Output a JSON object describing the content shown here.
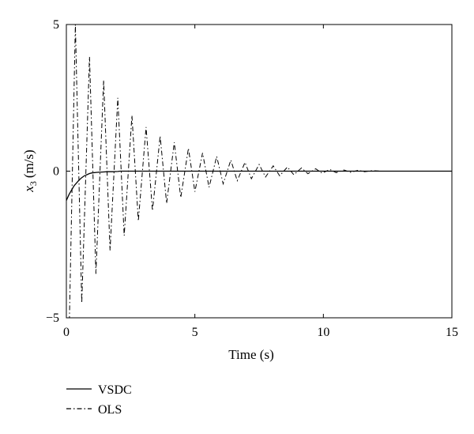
{
  "chart_data": {
    "type": "line",
    "xlabel": "Time (s)",
    "ylabel_main": "x",
    "ylabel_sub": "3",
    "ylabel_unit": "(m/s)",
    "xlim": [
      0,
      15
    ],
    "ylim": [
      -5,
      5
    ],
    "x_ticks": [
      0,
      5,
      10,
      15
    ],
    "y_ticks": [
      -5,
      0,
      5
    ],
    "x_tick_labels": [
      "0",
      "5",
      "10",
      "15"
    ],
    "y_tick_labels": [
      "−5",
      "0",
      "5"
    ],
    "grid": false,
    "legend_position": "below-left",
    "series": [
      {
        "name": "VSDC",
        "style": "solid",
        "x": [
          0,
          0.1,
          0.2,
          0.3,
          0.4,
          0.5,
          0.6,
          0.7,
          0.8,
          0.9,
          1.0,
          1.2,
          1.4,
          1.6,
          1.8,
          2.0,
          2.1,
          15
        ],
        "y": [
          -1.0,
          -0.8,
          -0.65,
          -0.5,
          -0.4,
          -0.3,
          -0.22,
          -0.16,
          -0.12,
          -0.08,
          -0.06,
          -0.04,
          -0.03,
          -0.02,
          -0.02,
          -0.01,
          0,
          0
        ]
      },
      {
        "name": "OLS",
        "style": "dash-dot",
        "x": [
          0,
          0.12,
          0.35,
          0.6,
          0.9,
          1.15,
          1.45,
          1.7,
          2.0,
          2.25,
          2.55,
          2.8,
          3.1,
          3.35,
          3.65,
          3.9,
          4.2,
          4.45,
          4.75,
          5.0,
          5.3,
          5.55,
          5.85,
          6.1,
          6.4,
          6.65,
          6.95,
          7.2,
          7.5,
          7.75,
          8.05,
          8.3,
          8.6,
          8.85,
          9.15,
          9.4,
          9.7,
          9.95,
          10.25,
          10.5,
          10.8,
          11.05,
          11.35,
          11.6,
          11.9,
          12.2,
          15
        ],
        "y": [
          -5.0,
          -5.0,
          5.0,
          -4.5,
          3.9,
          -3.5,
          3.1,
          -2.7,
          2.5,
          -2.2,
          1.9,
          -1.7,
          1.5,
          -1.35,
          1.2,
          -1.1,
          0.98,
          -0.9,
          0.78,
          -0.7,
          0.62,
          -0.55,
          0.5,
          -0.43,
          0.38,
          -0.33,
          0.3,
          -0.26,
          0.23,
          -0.2,
          0.18,
          -0.16,
          0.14,
          -0.12,
          0.11,
          -0.09,
          0.08,
          -0.07,
          0.06,
          -0.05,
          0.04,
          -0.04,
          0.03,
          -0.02,
          0.02,
          0,
          0
        ]
      }
    ]
  }
}
